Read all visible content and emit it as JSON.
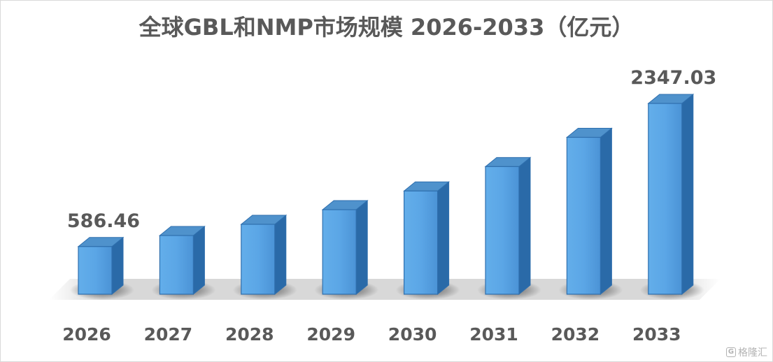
{
  "chart_data": {
    "type": "bar",
    "title": "全球GBL和NMP市场规模 2026-2033（亿元）",
    "xlabel": "",
    "ylabel": "",
    "categories": [
      "2026",
      "2027",
      "2028",
      "2029",
      "2030",
      "2031",
      "2032",
      "2033"
    ],
    "values": [
      586.46,
      722,
      860,
      1040,
      1270,
      1570,
      1930,
      2347.03
    ],
    "data_labels": [
      "586.46",
      "",
      "",
      "",
      "",
      "",
      "",
      "2347.03"
    ],
    "ylim": [
      0,
      2500
    ],
    "grid": false,
    "legend": "none",
    "style": "3d-column",
    "colors": {
      "bar_front_top": "#7fbdf0",
      "bar_front_bottom": "#3f8fd6",
      "bar_side": "#2a6aa8",
      "bar_top": "#4f92cc",
      "bar_edge": "#2f6fae",
      "text": "#595959"
    }
  },
  "watermark": {
    "icon": "G",
    "text": "格隆汇"
  }
}
